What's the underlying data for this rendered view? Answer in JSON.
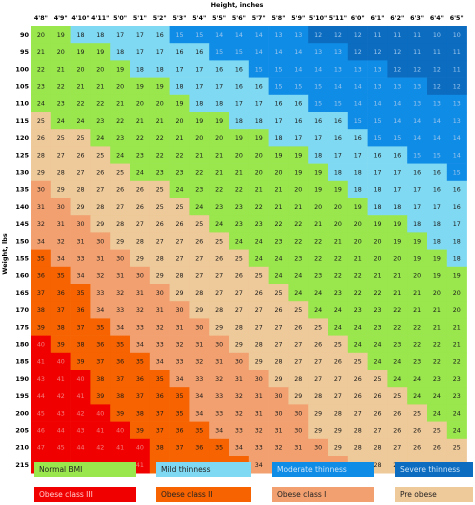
{
  "chart_data": {
    "type": "heatmap",
    "xlabel": "Height, inches",
    "ylabel": "Weight, lbs",
    "x_ticks": [
      "4'8\"",
      "4'9\"",
      "4'10\"",
      "4'11\"",
      "5'0\"",
      "5'1\"",
      "5'2\"",
      "5'3\"",
      "5'4\"",
      "5'5\"",
      "5'6\"",
      "5'7\"",
      "5'8\"",
      "5'9\"",
      "5'10\"",
      "5'11\"",
      "6'0\"",
      "6'1\"",
      "6'2\"",
      "6'3\"",
      "6'4\"",
      "6'5\""
    ],
    "y_ticks": [
      90,
      95,
      100,
      105,
      110,
      115,
      120,
      125,
      130,
      135,
      140,
      145,
      150,
      155,
      160,
      165,
      170,
      175,
      180,
      185,
      190,
      195,
      200,
      205,
      210,
      215
    ],
    "values": [
      [
        20,
        19,
        18,
        18,
        17,
        17,
        16,
        15,
        15,
        14,
        14,
        14,
        13,
        13,
        12,
        12,
        12,
        11,
        11,
        11,
        10,
        10
      ],
      [
        21,
        20,
        19,
        19,
        18,
        17,
        17,
        16,
        16,
        15,
        15,
        14,
        14,
        14,
        13,
        13,
        12,
        12,
        12,
        11,
        11,
        11
      ],
      [
        22,
        21,
        20,
        20,
        19,
        18,
        18,
        17,
        17,
        16,
        16,
        15,
        15,
        14,
        14,
        13,
        13,
        13,
        12,
        12,
        12,
        11
      ],
      [
        23,
        22,
        21,
        21,
        20,
        19,
        19,
        18,
        17,
        17,
        16,
        16,
        15,
        15,
        15,
        14,
        14,
        13,
        13,
        13,
        12,
        12
      ],
      [
        24,
        23,
        22,
        22,
        21,
        20,
        20,
        19,
        18,
        18,
        17,
        17,
        16,
        16,
        15,
        15,
        14,
        14,
        14,
        13,
        13,
        13
      ],
      [
        25,
        24,
        24,
        23,
        22,
        21,
        21,
        20,
        19,
        19,
        18,
        18,
        17,
        16,
        16,
        16,
        15,
        15,
        14,
        14,
        14,
        13
      ],
      [
        26,
        25,
        25,
        24,
        23,
        22,
        22,
        21,
        20,
        20,
        19,
        19,
        18,
        17,
        17,
        16,
        16,
        15,
        15,
        14,
        14,
        14
      ],
      [
        28,
        27,
        26,
        25,
        24,
        23,
        22,
        22,
        21,
        21,
        20,
        20,
        19,
        19,
        18,
        17,
        17,
        16,
        16,
        15,
        15,
        14
      ],
      [
        29,
        28,
        27,
        26,
        25,
        24,
        23,
        23,
        22,
        21,
        21,
        20,
        20,
        19,
        19,
        18,
        18,
        17,
        17,
        16,
        16,
        15
      ],
      [
        30,
        29,
        28,
        27,
        26,
        26,
        25,
        24,
        23,
        22,
        22,
        21,
        21,
        20,
        19,
        19,
        18,
        18,
        17,
        17,
        16,
        16
      ],
      [
        31,
        30,
        29,
        28,
        27,
        26,
        25,
        25,
        24,
        23,
        23,
        22,
        21,
        21,
        20,
        20,
        19,
        18,
        18,
        17,
        17,
        16
      ],
      [
        32,
        31,
        30,
        29,
        28,
        27,
        26,
        26,
        25,
        24,
        23,
        23,
        22,
        22,
        21,
        20,
        20,
        19,
        19,
        18,
        18,
        17
      ],
      [
        34,
        32,
        31,
        30,
        29,
        28,
        27,
        27,
        26,
        25,
        24,
        24,
        23,
        22,
        22,
        21,
        20,
        20,
        19,
        19,
        18,
        18
      ],
      [
        35,
        34,
        33,
        31,
        30,
        29,
        28,
        27,
        27,
        26,
        25,
        24,
        24,
        23,
        22,
        22,
        21,
        20,
        20,
        19,
        19,
        18
      ],
      [
        36,
        35,
        34,
        32,
        31,
        30,
        29,
        28,
        27,
        27,
        26,
        25,
        24,
        24,
        23,
        22,
        22,
        21,
        21,
        20,
        19,
        19
      ],
      [
        37,
        36,
        35,
        33,
        32,
        31,
        30,
        29,
        28,
        27,
        27,
        26,
        25,
        24,
        24,
        23,
        22,
        22,
        21,
        21,
        20,
        20
      ],
      [
        38,
        37,
        36,
        34,
        33,
        32,
        31,
        30,
        29,
        28,
        27,
        27,
        26,
        25,
        24,
        24,
        23,
        23,
        22,
        21,
        21,
        20
      ],
      [
        39,
        38,
        37,
        35,
        34,
        33,
        32,
        31,
        30,
        29,
        28,
        27,
        27,
        26,
        25,
        24,
        24,
        23,
        22,
        22,
        21,
        21
      ],
      [
        40,
        39,
        38,
        36,
        35,
        34,
        33,
        32,
        31,
        30,
        29,
        28,
        27,
        27,
        26,
        25,
        24,
        24,
        23,
        22,
        22,
        21
      ],
      [
        41,
        40,
        39,
        37,
        36,
        35,
        34,
        33,
        32,
        31,
        30,
        29,
        28,
        27,
        27,
        26,
        25,
        24,
        24,
        23,
        22,
        22
      ],
      [
        43,
        41,
        40,
        38,
        37,
        36,
        35,
        34,
        33,
        32,
        31,
        30,
        29,
        28,
        27,
        27,
        26,
        25,
        24,
        24,
        23,
        23
      ],
      [
        44,
        42,
        41,
        39,
        38,
        37,
        36,
        35,
        34,
        33,
        32,
        31,
        30,
        29,
        28,
        27,
        26,
        26,
        25,
        24,
        24,
        23
      ],
      [
        45,
        43,
        42,
        40,
        39,
        38,
        37,
        35,
        34,
        33,
        32,
        31,
        30,
        30,
        29,
        28,
        27,
        26,
        26,
        25,
        24,
        24
      ],
      [
        46,
        44,
        43,
        41,
        40,
        39,
        37,
        36,
        35,
        34,
        33,
        32,
        31,
        30,
        29,
        29,
        28,
        27,
        26,
        26,
        25,
        24
      ],
      [
        47,
        45,
        44,
        42,
        41,
        40,
        38,
        37,
        36,
        35,
        34,
        33,
        32,
        31,
        30,
        29,
        28,
        28,
        27,
        26,
        26,
        25
      ],
      [
        48,
        47,
        45,
        43,
        42,
        41,
        39,
        38,
        37,
        36,
        35,
        34,
        33,
        32,
        31,
        30,
        29,
        28,
        28,
        27,
        26,
        26
      ]
    ],
    "legend": [
      {
        "label": "Normal BMI",
        "color": "#99e64d"
      },
      {
        "label": "Mild thinness",
        "color": "#80d9f2"
      },
      {
        "label": "Moderate thinness",
        "color": "#0f8ce6"
      },
      {
        "label": "Severe thinness",
        "color": "#0b6cc0"
      },
      {
        "label": "Obese class III",
        "color": "#f10000"
      },
      {
        "label": "Obese class II",
        "color": "#f66300"
      },
      {
        "label": "Obese class I",
        "color": "#f2a070"
      },
      {
        "label": "Pre obese",
        "color": "#eec999"
      }
    ]
  }
}
